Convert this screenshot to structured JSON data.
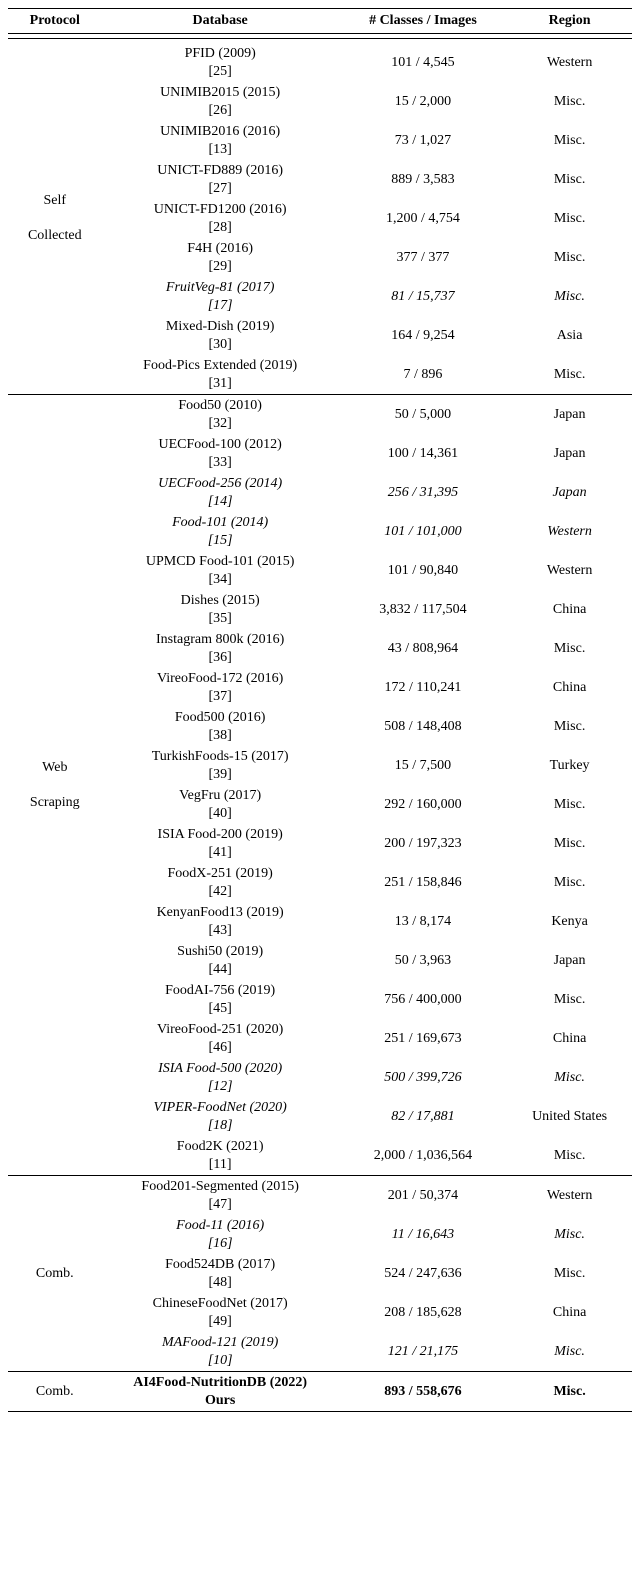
{
  "header": {
    "protocol": "Protocol",
    "database": "Database",
    "classes": "# Classes / Images",
    "region": "Region"
  },
  "groups": [
    {
      "protocol_lines": [
        "Self",
        "",
        "Collected"
      ],
      "rows": [
        {
          "db": "PFID (2009)",
          "ref": "[25]",
          "ci": "101 / 4,545",
          "rg": "Western",
          "ital": false
        },
        {
          "db": "UNIMIB2015 (2015)",
          "ref": "[26]",
          "ci": "15 / 2,000",
          "rg": "Misc.",
          "ital": false
        },
        {
          "db": "UNIMIB2016 (2016)",
          "ref": "[13]",
          "ci": "73 / 1,027",
          "rg": "Misc.",
          "ital": false
        },
        {
          "db": "UNICT-FD889 (2016)",
          "ref": "[27]",
          "ci": "889 / 3,583",
          "rg": "Misc.",
          "ital": false
        },
        {
          "db": "UNICT-FD1200 (2016)",
          "ref": "[28]",
          "ci": "1,200 / 4,754",
          "rg": "Misc.",
          "ital": false
        },
        {
          "db": "F4H (2016)",
          "ref": "[29]",
          "ci": "377 / 377",
          "rg": "Misc.",
          "ital": false
        },
        {
          "db": "FruitVeg-81 (2017)",
          "ref": "[17]",
          "ci": "81 / 15,737",
          "rg": "Misc.",
          "ital": true
        },
        {
          "db": "Mixed-Dish (2019)",
          "ref": "[30]",
          "ci": "164 / 9,254",
          "rg": "Asia",
          "ital": false
        },
        {
          "db": "Food-Pics Extended (2019)",
          "ref": "[31]",
          "ci": "7 / 896",
          "rg": "Misc.",
          "ital": false
        }
      ]
    },
    {
      "protocol_lines": [
        "Web",
        "",
        "Scraping"
      ],
      "rows": [
        {
          "db": "Food50 (2010)",
          "ref": "[32]",
          "ci": "50 / 5,000",
          "rg": "Japan",
          "ital": false
        },
        {
          "db": "UECFood-100 (2012)",
          "ref": "[33]",
          "ci": "100 / 14,361",
          "rg": "Japan",
          "ital": false
        },
        {
          "db": "UECFood-256 (2014)",
          "ref": "[14]",
          "ci": "256 / 31,395",
          "rg": "Japan",
          "ital": true
        },
        {
          "db": "Food-101 (2014)",
          "ref": "[15]",
          "ci": "101 / 101,000",
          "rg": "Western",
          "ital": true
        },
        {
          "db": "UPMCD Food-101 (2015)",
          "ref": "[34]",
          "ci": "101 / 90,840",
          "rg": "Western",
          "ital": false
        },
        {
          "db": "Dishes (2015)",
          "ref": "[35]",
          "ci": "3,832 / 117,504",
          "rg": "China",
          "ital": false
        },
        {
          "db": "Instagram 800k (2016)",
          "ref": "[36]",
          "ci": "43 / 808,964",
          "rg": "Misc.",
          "ital": false
        },
        {
          "db": "VireoFood-172 (2016)",
          "ref": "[37]",
          "ci": "172 / 110,241",
          "rg": "China",
          "ital": false
        },
        {
          "db": "Food500 (2016)",
          "ref": "[38]",
          "ci": "508 / 148,408",
          "rg": "Misc.",
          "ital": false
        },
        {
          "db": "TurkishFoods-15 (2017)",
          "ref": "[39]",
          "ci": "15 / 7,500",
          "rg": "Turkey",
          "ital": false
        },
        {
          "db": "VegFru (2017)",
          "ref": "[40]",
          "ci": "292 / 160,000",
          "rg": "Misc.",
          "ital": false
        },
        {
          "db": "ISIA Food-200 (2019)",
          "ref": "[41]",
          "ci": "200 / 197,323",
          "rg": "Misc.",
          "ital": false
        },
        {
          "db": "FoodX-251 (2019)",
          "ref": "[42]",
          "ci": "251 / 158,846",
          "rg": "Misc.",
          "ital": false
        },
        {
          "db": "KenyanFood13 (2019)",
          "ref": "[43]",
          "ci": "13 / 8,174",
          "rg": "Kenya",
          "ital": false
        },
        {
          "db": "Sushi50 (2019)",
          "ref": "[44]",
          "ci": "50 / 3,963",
          "rg": "Japan",
          "ital": false
        },
        {
          "db": "FoodAI-756 (2019)",
          "ref": "[45]",
          "ci": "756 / 400,000",
          "rg": "Misc.",
          "ital": false
        },
        {
          "db": "VireoFood-251 (2020)",
          "ref": "[46]",
          "ci": "251 / 169,673",
          "rg": "China",
          "ital": false
        },
        {
          "db": "ISIA Food-500 (2020)",
          "ref": "[12]",
          "ci": "500 / 399,726",
          "rg": "Misc.",
          "ital": true
        },
        {
          "db": "VIPER-FoodNet (2020)",
          "ref": "[18]",
          "ci": "82 / 17,881",
          "rg": "United States",
          "ital": true,
          "rg_ital": false
        },
        {
          "db": "Food2K (2021)",
          "ref": "[11]",
          "ci": "2,000 / 1,036,564",
          "rg": "Misc.",
          "ital": false
        }
      ]
    },
    {
      "protocol_lines": [
        "Comb."
      ],
      "rows": [
        {
          "db": "Food201-Segmented (2015)",
          "ref": "[47]",
          "ci": "201 / 50,374",
          "rg": "Western",
          "ital": false
        },
        {
          "db": "Food-11 (2016)",
          "ref": "[16]",
          "ci": "11 / 16,643",
          "rg": "Misc.",
          "ital": true
        },
        {
          "db": "Food524DB (2017)",
          "ref": "[48]",
          "ci": "524 / 247,636",
          "rg": "Misc.",
          "ital": false
        },
        {
          "db": "ChineseFoodNet (2017)",
          "ref": "[49]",
          "ci": "208 / 185,628",
          "rg": "China",
          "ital": false
        },
        {
          "db": "MAFood-121 (2019)",
          "ref": "[10]",
          "ci": "121 / 21,175",
          "rg": "Misc.",
          "ital": true
        }
      ]
    }
  ],
  "final": {
    "protocol": "Comb.",
    "db_line1": "AI4Food-NutritionDB (2022)",
    "db_line2": "Ours",
    "ci": "893 / 558,676",
    "rg": "Misc."
  }
}
